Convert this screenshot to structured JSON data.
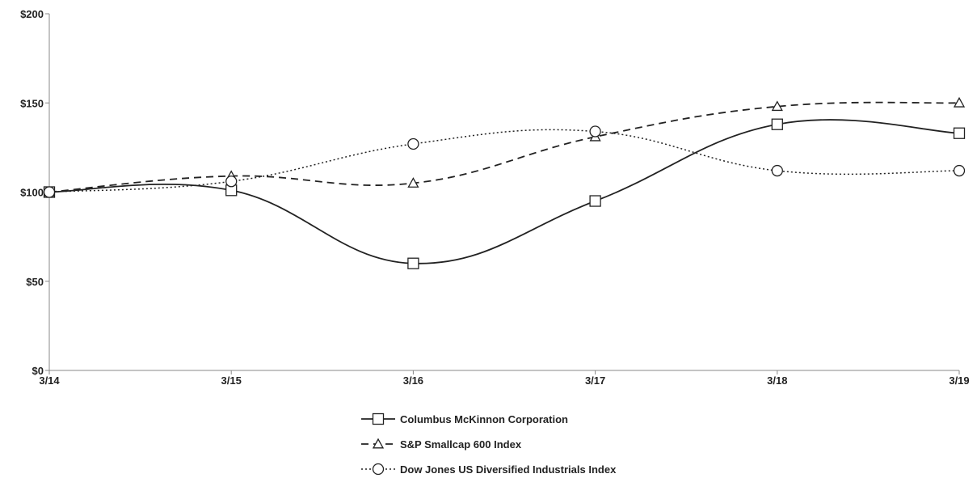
{
  "chart_data": {
    "type": "line",
    "title": "",
    "xlabel": "",
    "ylabel": "",
    "categories": [
      "3/14",
      "3/15",
      "3/16",
      "3/17",
      "3/18",
      "3/19"
    ],
    "ylim": [
      0,
      200
    ],
    "yticks": [
      0,
      50,
      100,
      150,
      200
    ],
    "ytick_labels": [
      "$0",
      "$50",
      "$100",
      "$150",
      "$200"
    ],
    "grid": false,
    "legend_position": "bottom",
    "series": [
      {
        "name": "Columbus McKinnon Corporation",
        "values": [
          100,
          101,
          60,
          95,
          138,
          133
        ],
        "marker": "square",
        "line_style": "solid"
      },
      {
        "name": "S&P Smallcap 600 Index",
        "values": [
          100,
          109,
          105,
          131,
          148,
          150
        ],
        "marker": "triangle",
        "line_style": "dashed"
      },
      {
        "name": "Dow Jones US Diversified Industrials Index",
        "values": [
          100,
          106,
          127,
          134,
          112,
          112
        ],
        "marker": "circle",
        "line_style": "dotted"
      }
    ],
    "colors": {
      "line": "#222222",
      "axis": "#888888"
    }
  }
}
